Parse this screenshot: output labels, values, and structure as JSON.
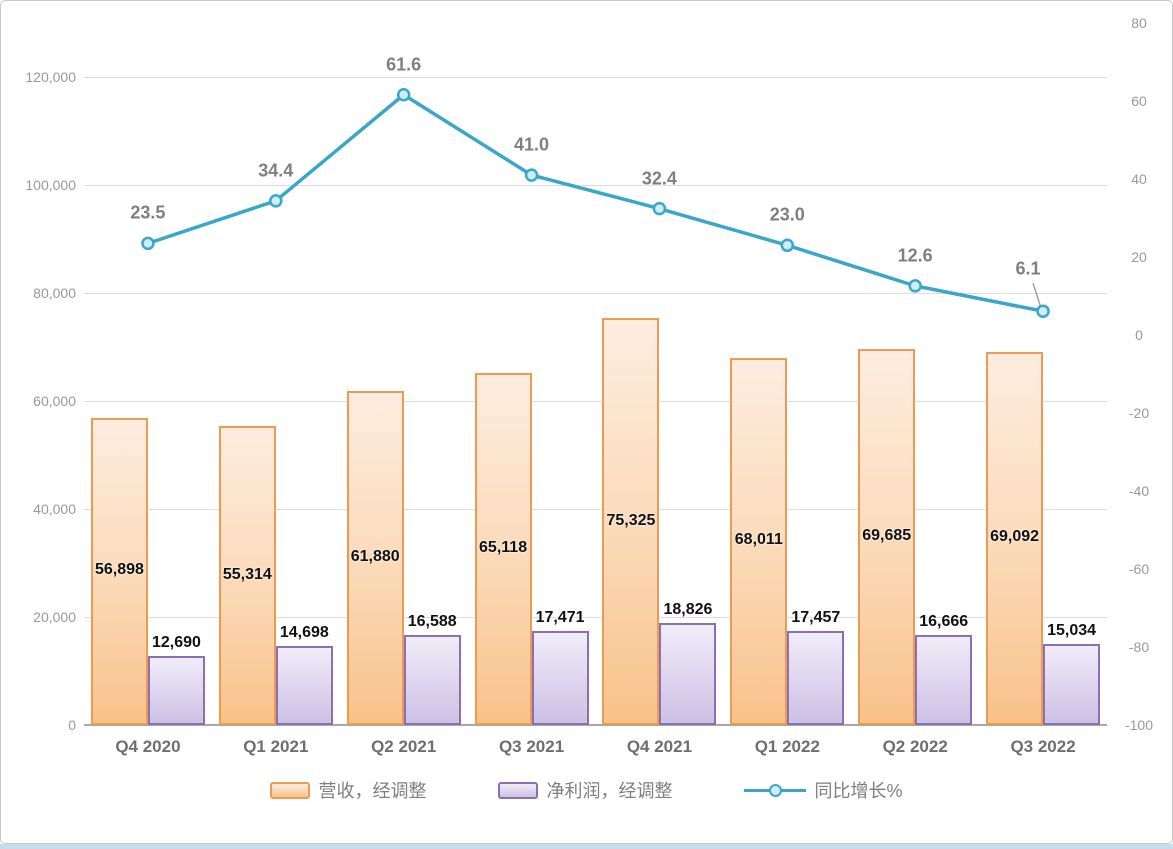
{
  "chart_data": {
    "type": "combo",
    "categories": [
      "Q4 2020",
      "Q1 2021",
      "Q2 2021",
      "Q3 2021",
      "Q4 2021",
      "Q1 2022",
      "Q2 2022",
      "Q3 2022"
    ],
    "series": [
      {
        "name": "营收，经调整",
        "type": "bar",
        "axis": "left",
        "values": [
          56898,
          55314,
          61880,
          65118,
          75325,
          68011,
          69685,
          69092
        ]
      },
      {
        "name": "净利润，经调整",
        "type": "bar",
        "axis": "left",
        "values": [
          12690,
          14698,
          16588,
          17471,
          18826,
          17457,
          16666,
          15034
        ]
      },
      {
        "name": "同比增长%",
        "type": "line",
        "axis": "right",
        "values": [
          23.5,
          34.4,
          61.6,
          41.0,
          32.4,
          23.0,
          12.6,
          6.1
        ]
      }
    ],
    "left_axis": {
      "min": 0,
      "max": 130000,
      "ticks": [
        0,
        20000,
        40000,
        60000,
        80000,
        100000,
        120000
      ]
    },
    "right_axis": {
      "min": -100,
      "max": 80,
      "ticks": [
        80,
        60,
        40,
        20,
        0,
        -20,
        -40,
        -60,
        -80,
        -100
      ]
    },
    "grid": true,
    "legend_position": "bottom",
    "title": "",
    "xlabel": "",
    "ylabel": ""
  },
  "legend": {
    "revenue": "营收，经调整",
    "profit": "净利润，经调整",
    "growth": "同比增长%"
  },
  "colors": {
    "revenue_border": "#ed9b52",
    "revenue_fill_top": "#fdeddf",
    "revenue_fill_bottom": "#f8c28a",
    "profit_border": "#8a6fb5",
    "profit_fill_top": "#f0edf8",
    "profit_fill_bottom": "#ccc1e5",
    "line": "#3aa7c9",
    "marker_fill": "#cfedf7",
    "line_label": "#7f7f7f",
    "bar_label": "#111111",
    "axis_label": "#999999",
    "x_label": "#6e6e6e",
    "gridline": "#dcdcdc",
    "axis_line": "#a8a8a8",
    "bottom_strip": "#c7dbec"
  }
}
